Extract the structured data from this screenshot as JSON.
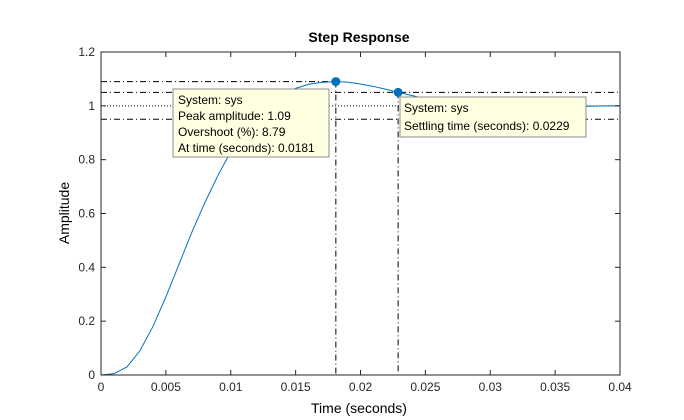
{
  "chart_data": {
    "type": "line",
    "title": "Step Response",
    "xlabel": "Time (seconds)",
    "ylabel": "Amplitude",
    "xlim": [
      0,
      0.04
    ],
    "ylim": [
      0,
      1.2
    ],
    "xticks": [
      "0",
      "0.005",
      "0.01",
      "0.015",
      "0.02",
      "0.025",
      "0.03",
      "0.035",
      "0.04"
    ],
    "yticks": [
      "0",
      "0.2",
      "0.4",
      "0.6",
      "0.8",
      "1",
      "1.2"
    ],
    "grid": false,
    "final_value": 1,
    "settling_band": [
      0.95,
      1.05
    ],
    "series": [
      {
        "color": "#0072BD",
        "x": [
          0,
          0.001,
          0.002,
          0.003,
          0.004,
          0.005,
          0.006,
          0.007,
          0.008,
          0.009,
          0.01,
          0.011,
          0.012,
          0.013,
          0.014,
          0.015,
          0.016,
          0.017,
          0.0181,
          0.019,
          0.02,
          0.021,
          0.022,
          0.0229,
          0.024,
          0.025,
          0.026,
          0.027,
          0.028,
          0.029,
          0.03,
          0.031,
          0.032,
          0.033,
          0.034,
          0.035,
          0.036,
          0.037,
          0.038,
          0.039,
          0.04
        ],
        "y": [
          0,
          0.005,
          0.03,
          0.09,
          0.18,
          0.29,
          0.41,
          0.53,
          0.64,
          0.74,
          0.83,
          0.9,
          0.96,
          1.01,
          1.04,
          1.065,
          1.08,
          1.087,
          1.09,
          1.088,
          1.081,
          1.072,
          1.061,
          1.05,
          1.038,
          1.026,
          1.016,
          1.007,
          1.0,
          0.995,
          0.991,
          0.989,
          0.989,
          0.99,
          0.992,
          0.994,
          0.996,
          0.998,
          0.999,
          1.0,
          1.0
        ]
      }
    ],
    "markers": {
      "peak": {
        "x": 0.0181,
        "y": 1.09
      },
      "settling": {
        "x": 0.0229,
        "y": 1.05
      }
    }
  },
  "datatips": {
    "peak": {
      "lines": [
        "System: sys",
        "Peak amplitude: 1.09",
        "Overshoot (%): 8.79",
        "At time (seconds): 0.0181"
      ]
    },
    "settling": {
      "lines": [
        "System: sys",
        "Settling time (seconds): 0.0229"
      ]
    }
  }
}
